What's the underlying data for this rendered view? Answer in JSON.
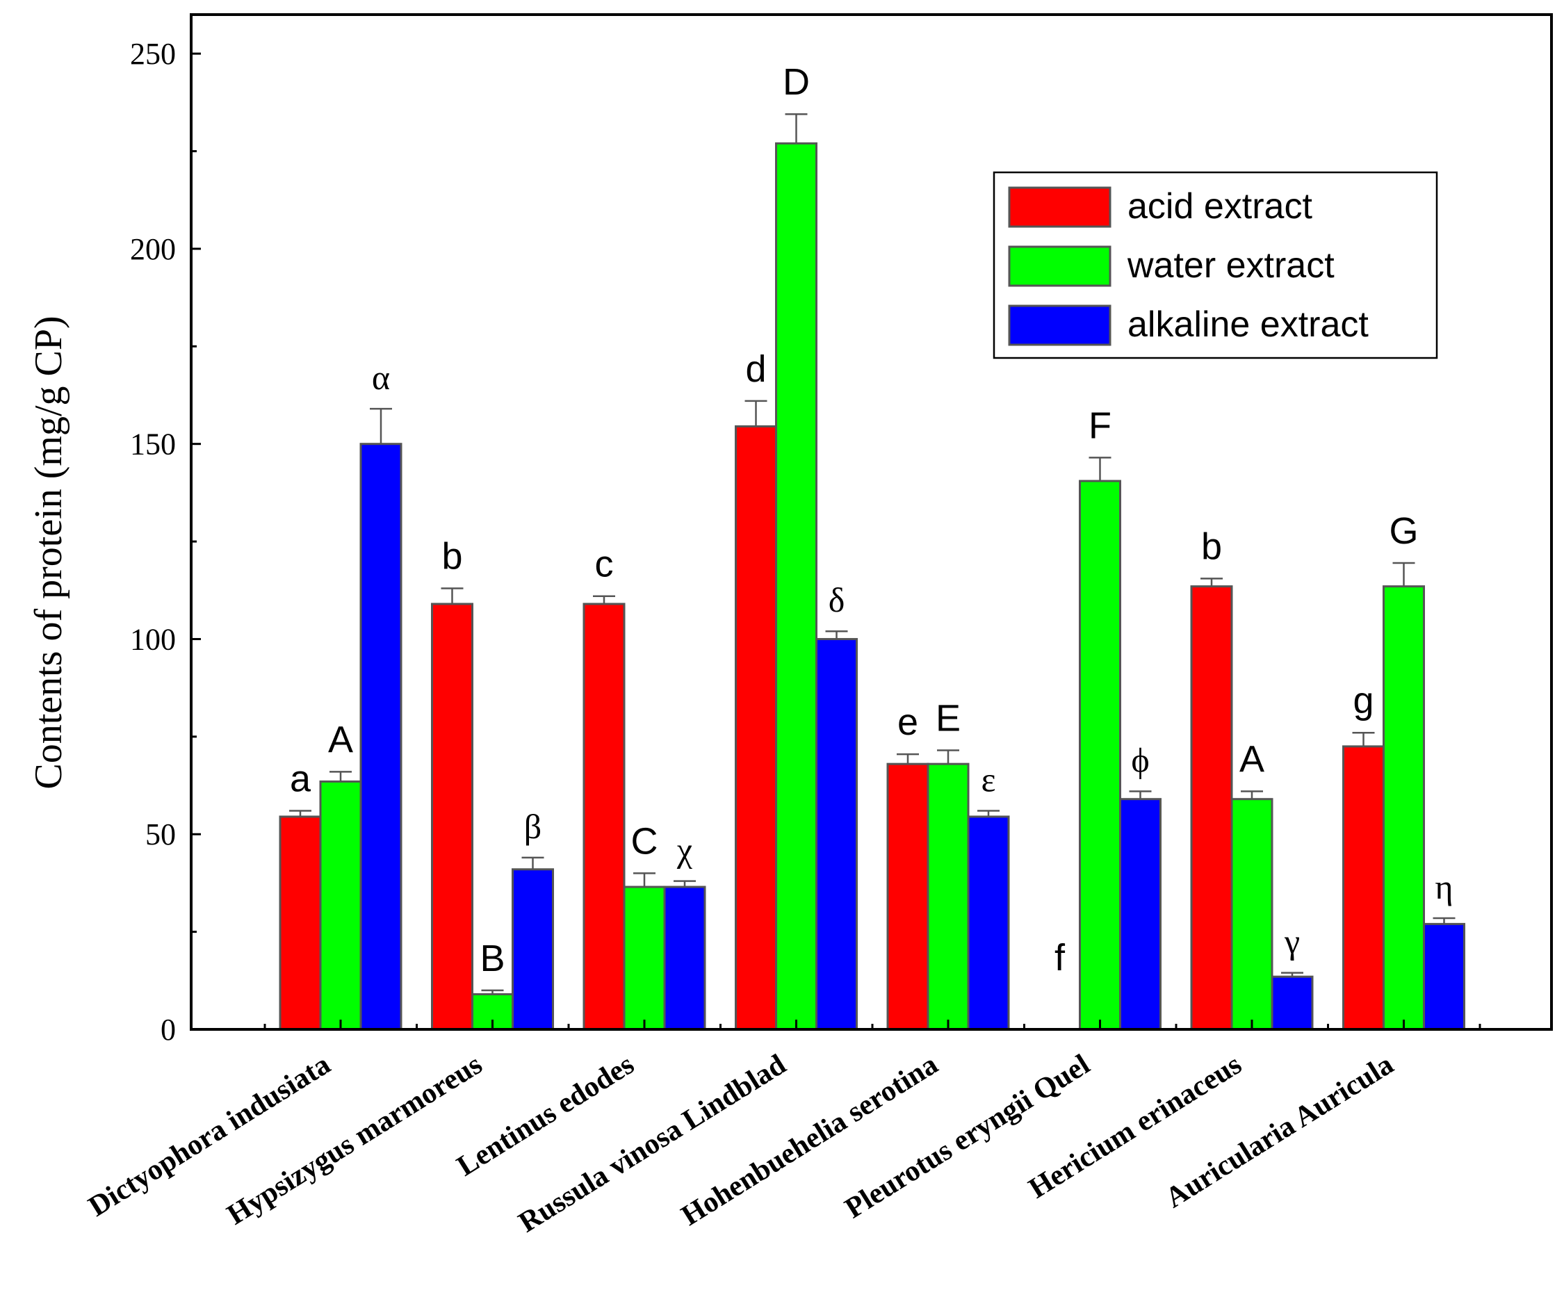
{
  "chart_data": {
    "type": "bar",
    "title": "",
    "xlabel": "",
    "ylabel": "Contents of protein (mg/g CP)",
    "ylim": [
      0,
      260
    ],
    "yticks": [
      0,
      50,
      100,
      150,
      200,
      250
    ],
    "grid": false,
    "legend": "top-right",
    "categories": [
      "Dictyophora indusiata",
      "Hypsizygus marmoreus",
      "Lentinus edodes",
      "Russula vinosa Lindblad",
      "Hohenbuehelia serotina",
      "Pleurotus eryngii Quel",
      "Hericium erinaceus",
      "Auricularia Auricula"
    ],
    "series": [
      {
        "name": "acid extract",
        "color": "#ff0000",
        "values": [
          54.5,
          109,
          109,
          154.5,
          68,
          0,
          113.5,
          72.5
        ],
        "errors": [
          1.5,
          4,
          2,
          6.5,
          2.5,
          0,
          2,
          3.5
        ],
        "significance": [
          "a",
          "b",
          "c",
          "d",
          "e",
          "f",
          "b",
          "g"
        ]
      },
      {
        "name": "water extract",
        "color": "#00ff00",
        "values": [
          63.5,
          9,
          36.5,
          227,
          68,
          140.5,
          59,
          113.5
        ],
        "errors": [
          2.5,
          1,
          3.5,
          7.5,
          3.5,
          6,
          2,
          6
        ],
        "significance": [
          "A",
          "B",
          "C",
          "D",
          "E",
          "F",
          "A",
          "G"
        ]
      },
      {
        "name": "alkaline extract",
        "color": "#0000ff",
        "values": [
          150,
          41,
          36.5,
          100,
          54.5,
          59,
          13.5,
          27
        ],
        "errors": [
          9,
          3,
          1.5,
          2,
          1.5,
          2,
          1,
          1.5
        ],
        "significance": [
          "α",
          "β",
          "χ",
          "δ",
          "ε",
          "ϕ",
          "γ",
          "η"
        ]
      }
    ]
  }
}
